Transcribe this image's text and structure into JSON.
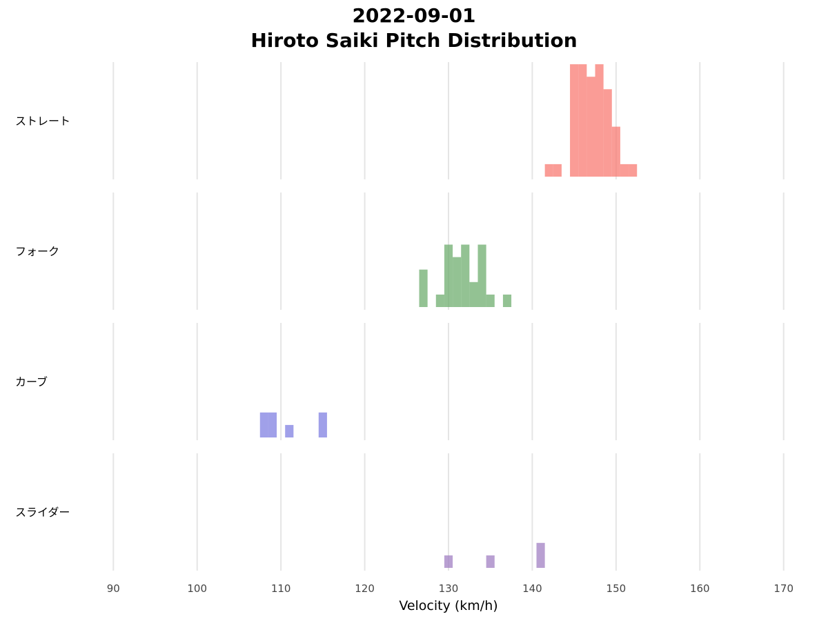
{
  "chart_data": {
    "type": "histogram",
    "title": "2022-09-01",
    "subtitle": "Hiroto Saiki Pitch Distribution",
    "xlabel": "Velocity (km/h)",
    "xlim": [
      88,
      172
    ],
    "xticks": [
      90,
      100,
      110,
      120,
      130,
      140,
      150,
      160,
      170
    ],
    "grid": true,
    "bin_width": 1,
    "facets": [
      {
        "label": "ストレート",
        "color": "#F8766D",
        "bins": [
          {
            "x": 142,
            "count": 1
          },
          {
            "x": 143,
            "count": 1
          },
          {
            "x": 145,
            "count": 9
          },
          {
            "x": 146,
            "count": 9
          },
          {
            "x": 147,
            "count": 8
          },
          {
            "x": 148,
            "count": 9
          },
          {
            "x": 149,
            "count": 7
          },
          {
            "x": 150,
            "count": 4
          },
          {
            "x": 151,
            "count": 1
          },
          {
            "x": 152,
            "count": 1
          }
        ]
      },
      {
        "label": "フォーク",
        "color": "#6AAA6A",
        "bins": [
          {
            "x": 127,
            "count": 3
          },
          {
            "x": 129,
            "count": 1
          },
          {
            "x": 130,
            "count": 5
          },
          {
            "x": 131,
            "count": 4
          },
          {
            "x": 132,
            "count": 5
          },
          {
            "x": 133,
            "count": 2
          },
          {
            "x": 134,
            "count": 5
          },
          {
            "x": 135,
            "count": 1
          },
          {
            "x": 137,
            "count": 1
          }
        ]
      },
      {
        "label": "カーブ",
        "color": "#7B7BE0",
        "bins": [
          {
            "x": 108,
            "count": 2
          },
          {
            "x": 109,
            "count": 2
          },
          {
            "x": 111,
            "count": 1
          },
          {
            "x": 115,
            "count": 2
          }
        ]
      },
      {
        "label": "スライダー",
        "color": "#9E7CC0",
        "bins": [
          {
            "x": 130,
            "count": 1
          },
          {
            "x": 135,
            "count": 1
          },
          {
            "x": 141,
            "count": 2
          }
        ]
      }
    ]
  }
}
